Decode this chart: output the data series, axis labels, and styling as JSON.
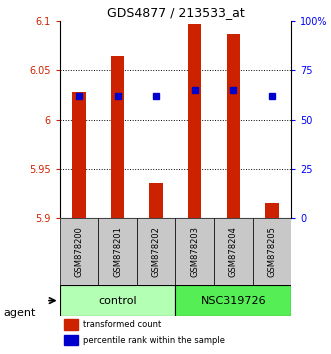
{
  "title": "GDS4877 / 213533_at",
  "samples": [
    "GSM878200",
    "GSM878201",
    "GSM878202",
    "GSM878203",
    "GSM878204",
    "GSM878205"
  ],
  "red_values": [
    6.028,
    6.065,
    5.935,
    6.097,
    6.087,
    5.915
  ],
  "blue_values": [
    62,
    62,
    62,
    65,
    65,
    62
  ],
  "ylim_left": [
    5.9,
    6.1
  ],
  "ylim_right": [
    0,
    100
  ],
  "yticks_left": [
    5.9,
    5.95,
    6.0,
    6.05,
    6.1
  ],
  "yticks_right": [
    0,
    25,
    50,
    75,
    100
  ],
  "ytick_labels_left": [
    "5.9",
    "5.95",
    "6",
    "6.05",
    "6.1"
  ],
  "ytick_labels_right": [
    "0",
    "25",
    "50",
    "75",
    "100%"
  ],
  "grid_values": [
    5.95,
    6.0,
    6.05
  ],
  "group1": {
    "label": "control",
    "indices": [
      0,
      1,
      2
    ],
    "color": "#b3ffb3"
  },
  "group2": {
    "label": "NSC319726",
    "indices": [
      3,
      4,
      5
    ],
    "color": "#55ee55"
  },
  "agent_label": "agent",
  "legend_red": "transformed count",
  "legend_blue": "percentile rank within the sample",
  "bar_width": 0.35,
  "red_color": "#cc2200",
  "blue_color": "#0000cc",
  "bar_bottom": 5.9,
  "sample_box_color": "#c8c8c8",
  "title_fontsize": 9,
  "tick_fontsize": 7,
  "sample_fontsize": 6,
  "group_fontsize": 8,
  "legend_fontsize": 6
}
